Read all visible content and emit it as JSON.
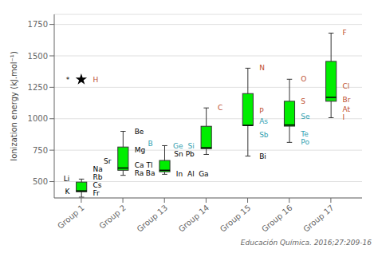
{
  "chart_data": {
    "type": "box",
    "ylabel": "Ionization energy (kJ.mol⁻¹)",
    "caption": "Educación Química. 2016;27:209-16",
    "categories": [
      "Group 1",
      "Group 2",
      "Group 13",
      "Group 14",
      "Group 15",
      "Group 16",
      "Group 17"
    ],
    "boxes": [
      {
        "whislo": 376,
        "q1": 419,
        "med": 426,
        "q3": 496,
        "whishi": 520,
        "fliers": [
          1312
        ]
      },
      {
        "whislo": 550,
        "q1": 590,
        "med": 608,
        "q3": 775,
        "whishi": 900,
        "fliers": []
      },
      {
        "whislo": 558,
        "q1": 578,
        "med": 590,
        "q3": 668,
        "whishi": 786,
        "fliers": []
      },
      {
        "whislo": 716,
        "q1": 762,
        "med": 769,
        "q3": 940,
        "whishi": 1086,
        "fliers": []
      },
      {
        "whislo": 703,
        "q1": 947,
        "med": 947,
        "q3": 1200,
        "whishi": 1402,
        "fliers": []
      },
      {
        "whislo": 812,
        "q1": 941,
        "med": 950,
        "q3": 1139,
        "whishi": 1314,
        "fliers": []
      },
      {
        "whislo": 1008,
        "q1": 1139,
        "med": 1170,
        "q3": 1456,
        "whishi": 1681,
        "fliers": []
      }
    ],
    "color": "#00ee00",
    "ylim": [
      370,
      1830
    ],
    "yticks": [
      500,
      750,
      1000,
      1250,
      1500,
      1750
    ],
    "grid": true,
    "annotations": [
      {
        "text": "Li",
        "category": "Group 1",
        "side": "left",
        "y": 520,
        "color": "black"
      },
      {
        "text": "K",
        "category": "Group 1",
        "side": "left",
        "y": 419,
        "color": "black"
      },
      {
        "text": "Na",
        "category": "Group 1",
        "side": "right",
        "y": 500,
        "color": "black"
      },
      {
        "text": "Rb",
        "category": "Group 1",
        "side": "right",
        "y": 458,
        "color": "black"
      },
      {
        "text": "Cs",
        "category": "Group 1",
        "side": "right",
        "y": 438,
        "color": "black"
      },
      {
        "text": "Fr",
        "category": "Group 1",
        "side": "right",
        "y": 408,
        "color": "black"
      },
      {
        "text": "*",
        "category": "Group 1",
        "side": "left",
        "y": 1312,
        "color": "black"
      },
      {
        "text": "H",
        "category": "Group 1",
        "side": "right",
        "y": 1312,
        "color": "#c05030"
      },
      {
        "text": "Be",
        "category": "Group 2",
        "side": "right",
        "y": 900,
        "color": "black"
      },
      {
        "text": "Mg",
        "category": "Group 2",
        "side": "right",
        "y": 750,
        "color": "black"
      },
      {
        "text": "Ca",
        "category": "Group 2",
        "side": "right",
        "y": 602,
        "color": "black"
      },
      {
        "text": "Sr",
        "category": "Group 2",
        "side": "left",
        "y": 560,
        "color": "black"
      },
      {
        "text": "Ra",
        "category": "Group 2",
        "side": "right",
        "y": 565,
        "color": "black"
      },
      {
        "text": "Ba",
        "category": "Group 2",
        "side": "right",
        "y": 565,
        "color": "black"
      },
      {
        "text": "Tl",
        "category": "Group 13",
        "side": "left",
        "y": 590,
        "color": "black"
      },
      {
        "text": "In",
        "category": "Group 13",
        "side": "right",
        "y": 558,
        "color": "black"
      },
      {
        "text": "Al",
        "category": "Group 13",
        "side": "right",
        "y": 558,
        "color": "black"
      },
      {
        "text": "Ga",
        "category": "Group 13",
        "side": "right",
        "y": 558,
        "color": "black"
      },
      {
        "text": "B",
        "category": "Group 13",
        "side": "left",
        "y": 800,
        "color": "#30a0b0"
      },
      {
        "text": "C",
        "category": "Group 14",
        "side": "right",
        "y": 1086,
        "color": "#c05030"
      },
      {
        "text": "Ge",
        "category": "Group 14",
        "side": "left",
        "y": 762,
        "color": "#30a0b0"
      },
      {
        "text": "Si",
        "category": "Group 14",
        "side": "left",
        "y": 762,
        "color": "#30a0b0"
      },
      {
        "text": "Sn",
        "category": "Group 14",
        "side": "left",
        "y": 716,
        "color": "black"
      },
      {
        "text": "Pb",
        "category": "Group 14",
        "side": "left",
        "y": 716,
        "color": "black"
      },
      {
        "text": "N",
        "category": "Group 15",
        "side": "right",
        "y": 1402,
        "color": "#c05030"
      },
      {
        "text": "P",
        "category": "Group 15",
        "side": "right",
        "y": 1060,
        "color": "#c05030"
      },
      {
        "text": "As",
        "category": "Group 15",
        "side": "right",
        "y": 980,
        "color": "#30a0b0"
      },
      {
        "text": "Sb",
        "category": "Group 15",
        "side": "right",
        "y": 872,
        "color": "#30a0b0"
      },
      {
        "text": "Bi",
        "category": "Group 15",
        "side": "right",
        "y": 703,
        "color": "black"
      },
      {
        "text": "O",
        "category": "Group 16",
        "side": "right",
        "y": 1314,
        "color": "#c05030"
      },
      {
        "text": "S",
        "category": "Group 16",
        "side": "right",
        "y": 1139,
        "color": "#c05030"
      },
      {
        "text": "Se",
        "category": "Group 16",
        "side": "right",
        "y": 1020,
        "color": "#30a0b0"
      },
      {
        "text": "Te",
        "category": "Group 16",
        "side": "right",
        "y": 878,
        "color": "#30a0b0"
      },
      {
        "text": "Po",
        "category": "Group 16",
        "side": "right",
        "y": 812,
        "color": "#30a0b0"
      },
      {
        "text": "F",
        "category": "Group 17",
        "side": "right",
        "y": 1681,
        "color": "#c05030"
      },
      {
        "text": "Cl",
        "category": "Group 17",
        "side": "right",
        "y": 1260,
        "color": "#c05030"
      },
      {
        "text": "Br",
        "category": "Group 17",
        "side": "right",
        "y": 1150,
        "color": "#c05030"
      },
      {
        "text": "At",
        "category": "Group 17",
        "side": "right",
        "y": 1050,
        "color": "#c05030"
      },
      {
        "text": "I",
        "category": "Group 17",
        "side": "right",
        "y": 1010,
        "color": "#c05030"
      }
    ]
  }
}
